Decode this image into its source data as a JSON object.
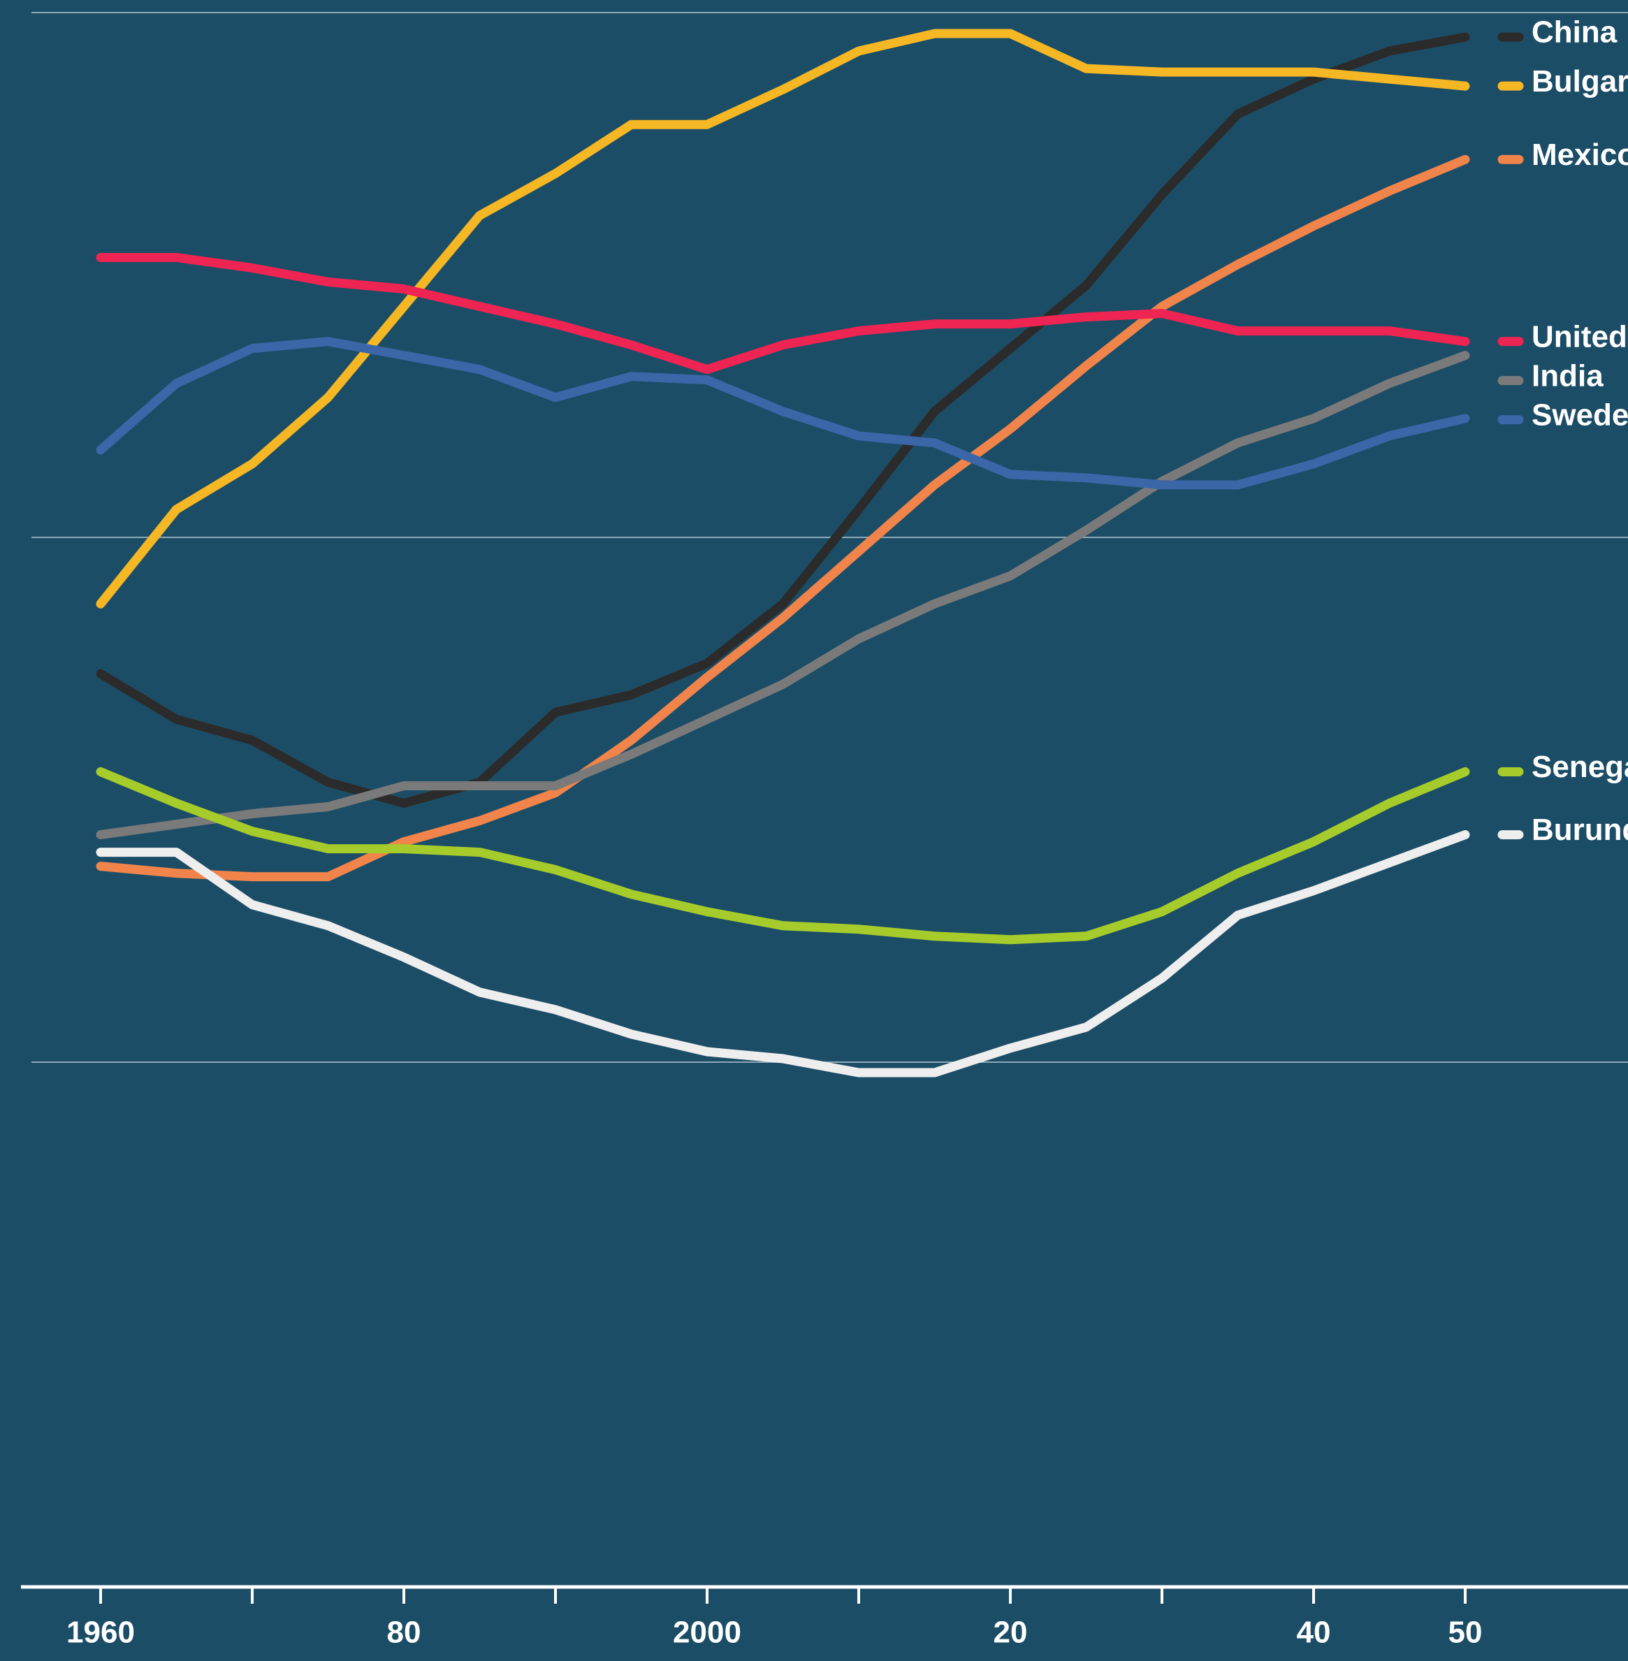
{
  "chart_data": {
    "type": "line",
    "x": [
      1960,
      1965,
      1970,
      1975,
      1980,
      1985,
      1990,
      1995,
      2000,
      2005,
      2010,
      2015,
      2020,
      2025,
      2030,
      2035,
      2040,
      2045,
      2050
    ],
    "series": [
      {
        "name": "China",
        "color": "#2b2b2b",
        "values": [
          26.1,
          24.8,
          24.2,
          23.0,
          22.4,
          23.0,
          25.0,
          25.5,
          26.4,
          28.1,
          30.8,
          33.6,
          35.4,
          37.2,
          39.8,
          42.1,
          43.1,
          43.9,
          44.3
        ]
      },
      {
        "name": "Bulgaria",
        "color": "#f5b724",
        "values": [
          28.1,
          30.8,
          32.1,
          34.0,
          36.6,
          39.2,
          40.4,
          41.8,
          41.8,
          42.8,
          43.9,
          44.4,
          44.4,
          43.4,
          43.3,
          43.3,
          43.3,
          43.1,
          42.9
        ]
      },
      {
        "name": "Mexico",
        "color": "#f0844a",
        "values": [
          20.6,
          20.4,
          20.3,
          20.3,
          21.3,
          21.9,
          22.7,
          24.2,
          26.0,
          27.7,
          29.6,
          31.5,
          33.1,
          34.9,
          36.6,
          37.8,
          38.9,
          39.9,
          40.8
        ]
      },
      {
        "name": "United States",
        "color": "#ee2452",
        "values": [
          38.0,
          38.0,
          37.7,
          37.3,
          37.1,
          36.6,
          36.1,
          35.5,
          34.8,
          35.5,
          35.9,
          36.1,
          36.1,
          36.3,
          36.4,
          35.9,
          35.9,
          35.9,
          35.6
        ]
      },
      {
        "name": "India",
        "color": "#7a7a7a",
        "values": [
          21.5,
          21.8,
          22.1,
          22.3,
          22.9,
          22.9,
          22.9,
          23.8,
          24.8,
          25.8,
          27.1,
          28.1,
          28.9,
          30.2,
          31.6,
          32.7,
          33.4,
          34.4,
          35.2
        ]
      },
      {
        "name": "Sweden",
        "color": "#3b66a8",
        "values": [
          32.5,
          34.4,
          35.4,
          35.6,
          35.2,
          34.8,
          34.0,
          34.6,
          34.5,
          33.6,
          32.9,
          32.7,
          31.8,
          31.7,
          31.5,
          31.5,
          32.1,
          32.9,
          33.4
        ]
      },
      {
        "name": "Senegal",
        "color": "#a5cc2a",
        "values": [
          23.3,
          22.4,
          21.6,
          21.1,
          21.1,
          21.0,
          20.5,
          19.8,
          19.3,
          18.9,
          18.8,
          18.6,
          18.5,
          18.6,
          19.3,
          20.4,
          21.3,
          22.4,
          23.3
        ]
      },
      {
        "name": "Burundi",
        "color": "#eeeeee",
        "values": [
          21.0,
          21.0,
          19.5,
          18.9,
          18.0,
          17.0,
          16.5,
          15.8,
          15.3,
          15.1,
          14.7,
          14.7,
          15.4,
          16.0,
          17.4,
          19.2,
          19.9,
          20.7,
          21.5
        ]
      }
    ],
    "xlim": [
      1955,
      2061
    ],
    "xticks": [
      1960,
      {
        "value": 1970,
        "label": null
      },
      {
        "value": 1980,
        "label": "80"
      },
      {
        "value": 1990,
        "label": null
      },
      2000,
      {
        "value": 2010,
        "label": null
      },
      {
        "value": 2020,
        "label": "20"
      },
      {
        "value": 2030,
        "label": null
      },
      {
        "value": 2040,
        "label": "40"
      },
      {
        "value": 2050,
        "label": "50"
      }
    ],
    "ylim": [
      0,
      45
    ],
    "yticks": [
      15,
      30,
      45
    ],
    "ytick_labels": false,
    "grid": true,
    "legend": "right"
  }
}
